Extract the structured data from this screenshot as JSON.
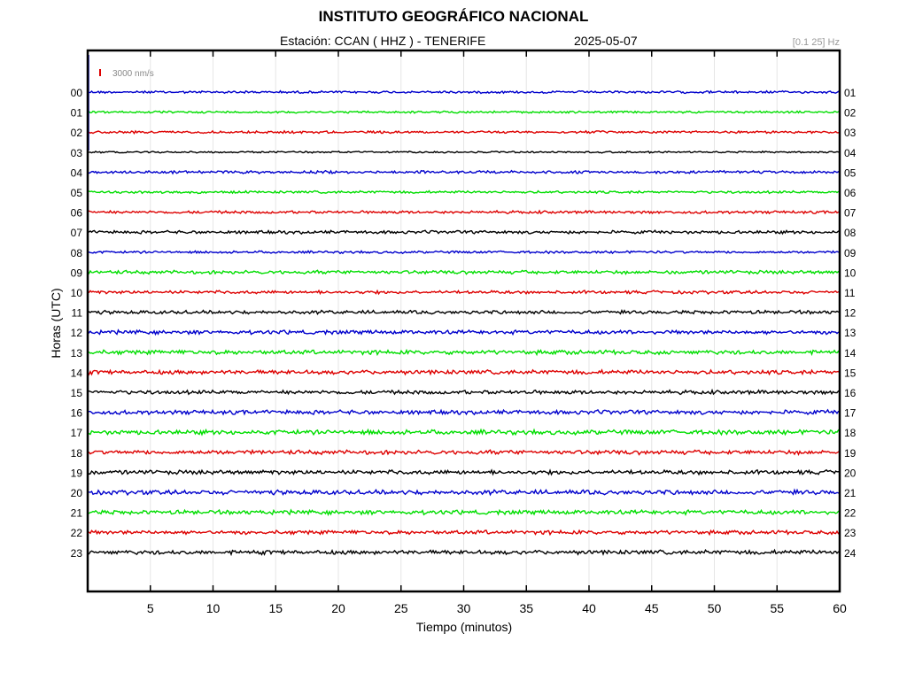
{
  "header": {
    "title": "INSTITUTO GEOGRÁFICO NACIONAL",
    "station": "Estación:  CCAN ( HHZ ) - TENERIFE",
    "date": "2025-05-07",
    "frequency_band": "[0.1 25] Hz"
  },
  "scale_label": "3000 nm/s",
  "colors": {
    "trace_cycle": [
      "#0000cc",
      "#00dd00",
      "#dd0000",
      "#000000"
    ],
    "scale_bar": "#dd0000",
    "grid": "#e6e6e6"
  },
  "chart_data": {
    "type": "line",
    "title": "INSTITUTO GEOGRÁFICO NACIONAL",
    "xlabel": "Tiempo (minutos)",
    "ylabel": "Horas (UTC)",
    "xlim": [
      0,
      60
    ],
    "x_ticks": [
      5,
      10,
      15,
      20,
      25,
      30,
      35,
      40,
      45,
      50,
      55,
      60
    ],
    "left_hour_labels": [
      "00",
      "01",
      "02",
      "03",
      "04",
      "05",
      "06",
      "07",
      "08",
      "09",
      "10",
      "11",
      "12",
      "13",
      "14",
      "15",
      "16",
      "17",
      "18",
      "19",
      "20",
      "21",
      "22",
      "23"
    ],
    "right_hour_labels": [
      "01",
      "02",
      "03",
      "04",
      "05",
      "06",
      "07",
      "08",
      "09",
      "10",
      "11",
      "12",
      "13",
      "14",
      "15",
      "16",
      "17",
      "18",
      "19",
      "20",
      "21",
      "22",
      "23",
      "24"
    ],
    "series_amplitude": [
      0.35,
      0.3,
      0.35,
      0.25,
      0.4,
      0.35,
      0.4,
      0.45,
      0.35,
      0.5,
      0.45,
      0.5,
      0.55,
      0.6,
      0.6,
      0.55,
      0.6,
      0.65,
      0.6,
      0.6,
      0.65,
      0.6,
      0.55,
      0.6
    ],
    "grid": true
  }
}
